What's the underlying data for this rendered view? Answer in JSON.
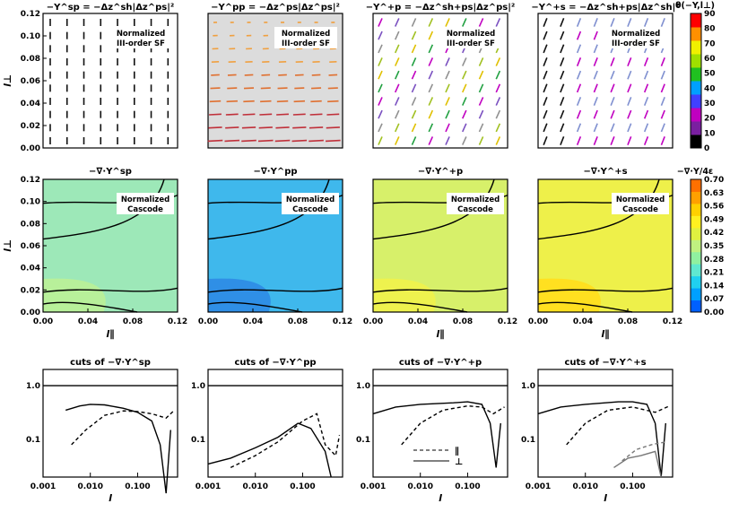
{
  "chart_data": [
    {
      "id": "r1c1",
      "type": "vector-field",
      "title": "−Y^sp = −Δz^sh|Δz^ps|²",
      "annotation": [
        "Normalized",
        "III-order SF"
      ],
      "xlim": [
        0,
        0.12
      ],
      "ylim": [
        0,
        0.12
      ],
      "xlabel": "",
      "ylabel": "l⊥",
      "xticks": [],
      "yticks": [
        "0.00",
        "0.02",
        "0.04",
        "0.06",
        "0.08",
        "0.10",
        "0.12"
      ],
      "background": "#ffffff",
      "field": "vertical-down-black"
    },
    {
      "id": "r1c2",
      "type": "vector-field",
      "title": "−Y^pp = −Δz^ps|Δz^ps|²",
      "annotation": [
        "Normalized",
        "III-order SF"
      ],
      "xlim": [
        0,
        0.12
      ],
      "ylim": [
        0,
        0.12
      ],
      "xlabel": "",
      "ylabel": "",
      "xticks": [],
      "yticks": [],
      "background": "#dcdcdc",
      "field": "horizontal-left-orange-red"
    },
    {
      "id": "r1c3",
      "type": "vector-field",
      "title": "−Y^+p = −Δz^sh+ps|Δz^ps|²",
      "annotation": [
        "Normalized",
        "III-order SF"
      ],
      "xlim": [
        0,
        0.12
      ],
      "ylim": [
        0,
        0.12
      ],
      "xlabel": "",
      "ylabel": "",
      "xticks": [],
      "yticks": [],
      "background": "#ffffff",
      "field": "diagonal-mixed"
    },
    {
      "id": "r1c4",
      "type": "vector-field",
      "title": "−Y^+s = −Δz^sh+ps|Δz^sh|²",
      "annotation": [
        "Normalized",
        "III-order SF"
      ],
      "xlim": [
        0,
        0.12
      ],
      "ylim": [
        0,
        0.12
      ],
      "xlabel": "",
      "ylabel": "",
      "xticks": [],
      "yticks": [],
      "background": "#ffffff",
      "field": "diagonal-grey"
    },
    {
      "id": "r2c1",
      "type": "contour",
      "title": "−∇·Y^sp",
      "annotation": [
        "Normalized",
        "Cascode"
      ],
      "xlim": [
        0,
        0.12
      ],
      "ylim": [
        0,
        0.12
      ],
      "xlabel": "l∥",
      "ylabel": "l⊥",
      "xticks": [
        "0.00",
        "0.04",
        "0.08",
        "0.12"
      ],
      "yticks": [
        "0.00",
        "0.02",
        "0.04",
        "0.06",
        "0.08",
        "0.10",
        "0.12"
      ],
      "fill": "#9de8b8",
      "fill_low": "#b8f09a"
    },
    {
      "id": "r2c2",
      "type": "contour",
      "title": "−∇·Y^pp",
      "annotation": [
        "Normalized",
        "Cascode"
      ],
      "xlim": [
        0,
        0.12
      ],
      "ylim": [
        0,
        0.12
      ],
      "xlabel": "",
      "ylabel": "",
      "xticks": [
        "0.00",
        "0.04",
        "0.08",
        "0.12"
      ],
      "yticks": [],
      "fill": "#3fb8ec",
      "fill_low": "#2f8fe6"
    },
    {
      "id": "r2c3",
      "type": "contour",
      "title": "−∇·Y^+p",
      "annotation": [
        "Normalized",
        "Cascode"
      ],
      "xlim": [
        0,
        0.12
      ],
      "ylim": [
        0,
        0.12
      ],
      "xlabel": "l∥",
      "ylabel": "",
      "xticks": [
        "0.00",
        "0.04",
        "0.08",
        "0.12"
      ],
      "yticks": [],
      "fill": "#d7f06a",
      "fill_low": "#eef24e"
    },
    {
      "id": "r2c4",
      "type": "contour",
      "title": "−∇·Y^+s",
      "annotation": [
        "Normalized",
        "Cascode"
      ],
      "xlim": [
        0,
        0.12
      ],
      "ylim": [
        0,
        0.12
      ],
      "xlabel": "l∥",
      "ylabel": "",
      "xticks": [
        "0.00",
        "0.04",
        "0.08",
        "0.12"
      ],
      "yticks": [],
      "fill": "#eef04a",
      "fill_low": "#ffe020"
    },
    {
      "id": "r3c1",
      "type": "line",
      "title": "cuts of  −∇·Y^sp",
      "xscale": "log",
      "yscale": "log",
      "xlabel": "l",
      "ylabel": "",
      "xticks": [
        "0.001",
        "0.010",
        "0.100"
      ],
      "yticks": [
        "0.1",
        "1.0"
      ],
      "series": [
        {
          "style": "solid",
          "points": [
            [
              0.003,
              0.35
            ],
            [
              0.006,
              0.42
            ],
            [
              0.01,
              0.45
            ],
            [
              0.02,
              0.44
            ],
            [
              0.05,
              0.38
            ],
            [
              0.1,
              0.32
            ],
            [
              0.2,
              0.22
            ],
            [
              0.3,
              0.08
            ],
            [
              0.4,
              0.01
            ],
            [
              0.5,
              0.15
            ]
          ]
        },
        {
          "style": "dashed",
          "points": [
            [
              0.004,
              0.08
            ],
            [
              0.008,
              0.15
            ],
            [
              0.02,
              0.28
            ],
            [
              0.05,
              0.34
            ],
            [
              0.1,
              0.33
            ],
            [
              0.2,
              0.3
            ],
            [
              0.4,
              0.25
            ],
            [
              0.6,
              0.35
            ]
          ]
        }
      ]
    },
    {
      "id": "r3c2",
      "type": "line",
      "title": "cuts of  −∇·Y^pp",
      "xscale": "log",
      "yscale": "log",
      "xlabel": "",
      "ylabel": "",
      "xticks": [
        "0.001",
        "0.010",
        "0.100"
      ],
      "yticks": [
        "0.1",
        "1.0"
      ],
      "series": [
        {
          "style": "solid",
          "points": [
            [
              0.001,
              0.035
            ],
            [
              0.003,
              0.045
            ],
            [
              0.01,
              0.07
            ],
            [
              0.03,
              0.11
            ],
            [
              0.08,
              0.2
            ],
            [
              0.15,
              0.16
            ],
            [
              0.3,
              0.06
            ],
            [
              0.4,
              0.02
            ]
          ]
        },
        {
          "style": "dashed",
          "points": [
            [
              0.003,
              0.03
            ],
            [
              0.01,
              0.05
            ],
            [
              0.03,
              0.09
            ],
            [
              0.1,
              0.22
            ],
            [
              0.2,
              0.3
            ],
            [
              0.3,
              0.08
            ],
            [
              0.5,
              0.05
            ],
            [
              0.6,
              0.12
            ]
          ]
        }
      ]
    },
    {
      "id": "r3c3",
      "type": "line",
      "title": "cuts of  −∇·Y^+p",
      "xscale": "log",
      "yscale": "log",
      "xlabel": "l",
      "ylabel": "",
      "xticks": [
        "0.001",
        "0.010",
        "0.100"
      ],
      "yticks": [
        "0.1",
        "1.0"
      ],
      "legend": [
        "∥",
        "⊥"
      ],
      "series": [
        {
          "style": "solid",
          "points": [
            [
              0.001,
              0.3
            ],
            [
              0.003,
              0.4
            ],
            [
              0.01,
              0.45
            ],
            [
              0.05,
              0.48
            ],
            [
              0.1,
              0.5
            ],
            [
              0.2,
              0.45
            ],
            [
              0.3,
              0.2
            ],
            [
              0.4,
              0.03
            ],
            [
              0.5,
              0.2
            ]
          ]
        },
        {
          "style": "dashed",
          "points": [
            [
              0.004,
              0.08
            ],
            [
              0.01,
              0.2
            ],
            [
              0.03,
              0.35
            ],
            [
              0.1,
              0.42
            ],
            [
              0.2,
              0.4
            ],
            [
              0.35,
              0.3
            ],
            [
              0.6,
              0.4
            ]
          ]
        }
      ]
    },
    {
      "id": "r3c4",
      "type": "line",
      "title": "cuts of  −∇·Y^+s",
      "xscale": "log",
      "yscale": "log",
      "xlabel": "l",
      "ylabel": "",
      "xticks": [
        "0.001",
        "0.010",
        "0.100"
      ],
      "yticks": [
        "0.1",
        "1.0"
      ],
      "series": [
        {
          "style": "solid",
          "points": [
            [
              0.001,
              0.3
            ],
            [
              0.003,
              0.4
            ],
            [
              0.01,
              0.45
            ],
            [
              0.05,
              0.5
            ],
            [
              0.1,
              0.5
            ],
            [
              0.2,
              0.45
            ],
            [
              0.3,
              0.2
            ],
            [
              0.4,
              0.02
            ],
            [
              0.5,
              0.2
            ]
          ]
        },
        {
          "style": "dashed",
          "points": [
            [
              0.004,
              0.08
            ],
            [
              0.01,
              0.2
            ],
            [
              0.03,
              0.35
            ],
            [
              0.1,
              0.4
            ],
            [
              0.3,
              0.32
            ],
            [
              0.6,
              0.42
            ]
          ]
        },
        {
          "style": "solid-grey",
          "points": [
            [
              0.04,
              0.03
            ],
            [
              0.08,
              0.045
            ],
            [
              0.15,
              0.05
            ],
            [
              0.3,
              0.06
            ],
            [
              0.4,
              0.02
            ]
          ]
        },
        {
          "style": "dashed-grey",
          "points": [
            [
              0.06,
              0.04
            ],
            [
              0.12,
              0.065
            ],
            [
              0.25,
              0.08
            ],
            [
              0.5,
              0.09
            ]
          ]
        }
      ]
    }
  ],
  "colorbars": [
    {
      "id": "cb1",
      "title": "θ(−Y,l⊥)",
      "ticks": [
        "0",
        "10",
        "20",
        "30",
        "40",
        "50",
        "60",
        "70",
        "80",
        "90"
      ],
      "colors": [
        "#000000",
        "#7a1fa0",
        "#c000c0",
        "#4040ff",
        "#00a0ff",
        "#20c020",
        "#a0e000",
        "#f0f000",
        "#ff9000",
        "#ff0000"
      ]
    },
    {
      "id": "cb2",
      "title": "−∇·Y/4ε",
      "ticks": [
        "0.00",
        "0.07",
        "0.14",
        "0.21",
        "0.28",
        "0.35",
        "0.42",
        "0.49",
        "0.56",
        "0.63",
        "0.70"
      ],
      "colors": [
        "#0060ff",
        "#00a0ff",
        "#20d0f0",
        "#60e8d0",
        "#90f0a0",
        "#c0f080",
        "#e0f040",
        "#fff020",
        "#ffd000",
        "#ffa000",
        "#ff7000"
      ]
    }
  ]
}
